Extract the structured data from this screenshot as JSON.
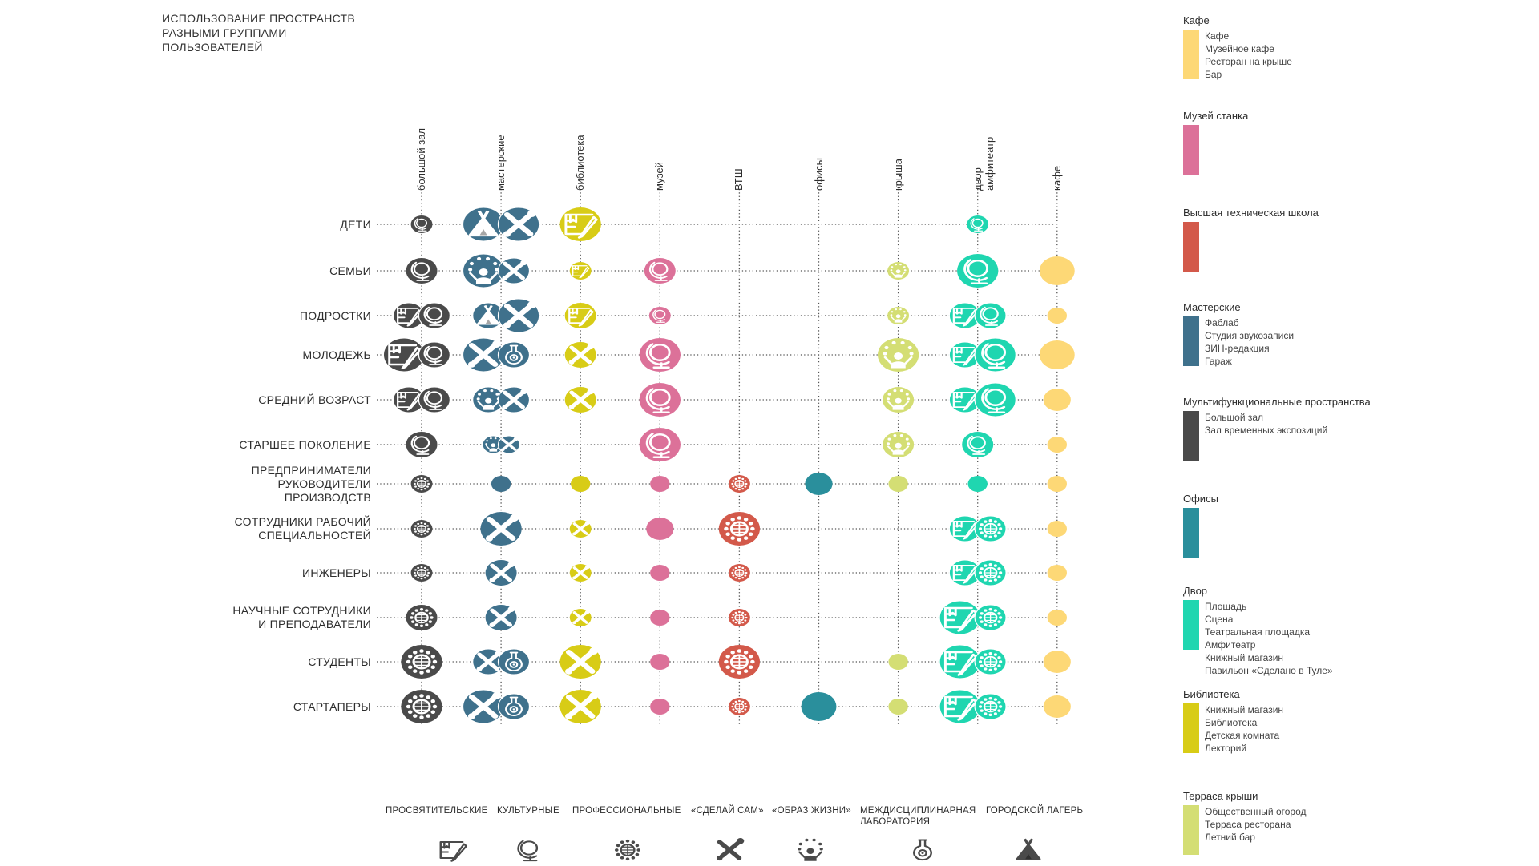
{
  "title": [
    "ИСПОЛЬЗОВАНИЕ ПРОСТРАНСТВ",
    "РАЗНЫМИ ГРУППАМИ",
    "ПОЛЬЗОВАТЕЛЕЙ"
  ],
  "colors": {
    "hall": "#4a4a4a",
    "workshops": "#3f718c",
    "library": "#d8cc16",
    "museum": "#dc7199",
    "vtsh": "#d3594a",
    "offices": "#2a8f9c",
    "roof": "#d4de74",
    "yard": "#1fd6b0",
    "cafe": "#fdd876",
    "gridline": "#555555",
    "icon_fill": "#ffffff",
    "legend_icon": "#4a4a4a"
  },
  "columns": [
    {
      "key": "hall",
      "label": [
        "большой зал"
      ]
    },
    {
      "key": "workshops",
      "label": [
        "мастерские"
      ]
    },
    {
      "key": "library",
      "label": [
        "библиотека"
      ]
    },
    {
      "key": "museum",
      "label": [
        "музей"
      ]
    },
    {
      "key": "vtsh",
      "label": [
        "ВТШ"
      ]
    },
    {
      "key": "offices",
      "label": [
        "офисы"
      ]
    },
    {
      "key": "roof",
      "label": [
        "крыша"
      ]
    },
    {
      "key": "yard",
      "label": [
        "двор",
        "амфитеатр"
      ]
    },
    {
      "key": "cafe",
      "label": [
        "кафе"
      ]
    }
  ],
  "rows": [
    {
      "label": [
        "ДЕТИ"
      ],
      "cells": {
        "hall": [
          [
            "globe",
            1
          ]
        ],
        "workshops": [
          [
            "camp",
            3
          ],
          [
            "tools",
            3
          ]
        ],
        "library": [
          [
            "edu",
            3
          ]
        ],
        "yard": [
          [
            "globe",
            1
          ]
        ]
      }
    },
    {
      "label": [
        "СЕМЬИ"
      ],
      "cells": {
        "hall": [
          [
            "globe",
            2
          ]
        ],
        "workshops": [
          [
            "life",
            3
          ],
          [
            "tools",
            2
          ]
        ],
        "library": [
          [
            "edu",
            1
          ]
        ],
        "museum": [
          [
            "globe",
            2
          ]
        ],
        "roof": [
          [
            "life",
            1
          ]
        ],
        "yard": [
          [
            "globe",
            3
          ]
        ],
        "cafe": [
          [
            "plain",
            3
          ]
        ]
      }
    },
    {
      "label": [
        "ПОДРОСТКИ"
      ],
      "cells": {
        "hall": [
          [
            "edu",
            2
          ],
          [
            "globe",
            2
          ]
        ],
        "workshops": [
          [
            "camp",
            2
          ],
          [
            "tools",
            3
          ]
        ],
        "library": [
          [
            "edu",
            2
          ]
        ],
        "museum": [
          [
            "globe",
            1
          ]
        ],
        "roof": [
          [
            "life",
            1
          ]
        ],
        "yard": [
          [
            "edu",
            2
          ],
          [
            "globe",
            2
          ]
        ],
        "cafe": [
          [
            "plain",
            1
          ]
        ]
      }
    },
    {
      "label": [
        "МОЛОДЕЖЬ"
      ],
      "cells": {
        "hall": [
          [
            "edu",
            3
          ],
          [
            "globe",
            2
          ]
        ],
        "workshops": [
          [
            "tools",
            3
          ],
          [
            "lab",
            2
          ]
        ],
        "library": [
          [
            "tools",
            2
          ]
        ],
        "museum": [
          [
            "globe",
            3
          ]
        ],
        "roof": [
          [
            "life",
            3
          ]
        ],
        "yard": [
          [
            "edu",
            2
          ],
          [
            "globe",
            3
          ]
        ],
        "cafe": [
          [
            "plain",
            3
          ]
        ]
      }
    },
    {
      "label": [
        "СРЕДНИЙ ВОЗРАСТ"
      ],
      "cells": {
        "hall": [
          [
            "edu",
            2
          ],
          [
            "globe",
            2
          ]
        ],
        "workshops": [
          [
            "life",
            2
          ],
          [
            "tools",
            2
          ]
        ],
        "library": [
          [
            "tools",
            2
          ]
        ],
        "museum": [
          [
            "globe",
            3
          ]
        ],
        "roof": [
          [
            "life",
            2
          ]
        ],
        "yard": [
          [
            "edu",
            2
          ],
          [
            "globe",
            3
          ]
        ],
        "cafe": [
          [
            "plain",
            2
          ]
        ]
      }
    },
    {
      "label": [
        "СТАРШЕЕ ПОКОЛЕНИЕ"
      ],
      "cells": {
        "hall": [
          [
            "globe",
            2
          ]
        ],
        "workshops": [
          [
            "life",
            1
          ],
          [
            "tools",
            1
          ]
        ],
        "museum": [
          [
            "globe",
            3
          ]
        ],
        "roof": [
          [
            "life",
            2
          ]
        ],
        "yard": [
          [
            "globe",
            2
          ]
        ],
        "cafe": [
          [
            "plain",
            1
          ]
        ]
      }
    },
    {
      "label": [
        "ПРЕДПРИНИМАТЕЛИ",
        "РУКОВОДИТЕЛИ",
        "ПРОИЗВОДСТВ"
      ],
      "cells": {
        "hall": [
          [
            "prof",
            1
          ]
        ],
        "workshops": [
          [
            "plain",
            1
          ]
        ],
        "library": [
          [
            "plain",
            1
          ]
        ],
        "museum": [
          [
            "plain",
            1
          ]
        ],
        "vtsh": [
          [
            "prof",
            1
          ]
        ],
        "offices": [
          [
            "plain",
            2
          ]
        ],
        "roof": [
          [
            "plain",
            1
          ]
        ],
        "yard": [
          [
            "plain",
            1
          ]
        ],
        "cafe": [
          [
            "plain",
            1
          ]
        ]
      }
    },
    {
      "label": [
        "СОТРУДНИКИ РАБОЧИЙ",
        "СПЕЦИАЛЬНОСТЕЙ"
      ],
      "cells": {
        "hall": [
          [
            "prof",
            1
          ]
        ],
        "workshops": [
          [
            "tools",
            3
          ]
        ],
        "library": [
          [
            "tools",
            1
          ]
        ],
        "museum": [
          [
            "plain",
            2
          ]
        ],
        "vtsh": [
          [
            "prof",
            3
          ]
        ],
        "yard": [
          [
            "edu",
            2
          ],
          [
            "prof",
            2
          ]
        ],
        "cafe": [
          [
            "plain",
            1
          ]
        ]
      }
    },
    {
      "label": [
        "ИНЖЕНЕРЫ"
      ],
      "cells": {
        "hall": [
          [
            "prof",
            1
          ]
        ],
        "workshops": [
          [
            "tools",
            2
          ]
        ],
        "library": [
          [
            "tools",
            1
          ]
        ],
        "museum": [
          [
            "plain",
            1
          ]
        ],
        "vtsh": [
          [
            "prof",
            1
          ]
        ],
        "yard": [
          [
            "edu",
            2
          ],
          [
            "prof",
            2
          ]
        ],
        "cafe": [
          [
            "plain",
            1
          ]
        ]
      }
    },
    {
      "label": [
        "НАУЧНЫЕ СОТРУДНИКИ",
        "И ПРЕПОДАВАТЕЛИ"
      ],
      "cells": {
        "hall": [
          [
            "prof",
            2
          ]
        ],
        "workshops": [
          [
            "tools",
            2
          ]
        ],
        "library": [
          [
            "tools",
            1
          ]
        ],
        "museum": [
          [
            "plain",
            1
          ]
        ],
        "vtsh": [
          [
            "prof",
            1
          ]
        ],
        "yard": [
          [
            "edu",
            3
          ],
          [
            "prof",
            2
          ]
        ],
        "cafe": [
          [
            "plain",
            1
          ]
        ]
      }
    },
    {
      "label": [
        "СТУДЕНТЫ"
      ],
      "cells": {
        "hall": [
          [
            "prof",
            3
          ]
        ],
        "workshops": [
          [
            "tools",
            2
          ],
          [
            "lab",
            2
          ]
        ],
        "library": [
          [
            "tools",
            3
          ]
        ],
        "museum": [
          [
            "plain",
            1
          ]
        ],
        "vtsh": [
          [
            "prof",
            3
          ]
        ],
        "roof": [
          [
            "plain",
            1
          ]
        ],
        "yard": [
          [
            "edu",
            3
          ],
          [
            "prof",
            2
          ]
        ],
        "cafe": [
          [
            "plain",
            2
          ]
        ]
      }
    },
    {
      "label": [
        "СТАРТАПЕРЫ"
      ],
      "cells": {
        "hall": [
          [
            "prof",
            3
          ]
        ],
        "workshops": [
          [
            "tools",
            3
          ],
          [
            "lab",
            2
          ]
        ],
        "library": [
          [
            "tools",
            3
          ]
        ],
        "museum": [
          [
            "plain",
            1
          ]
        ],
        "vtsh": [
          [
            "prof",
            1
          ]
        ],
        "offices": [
          [
            "plain",
            3
          ]
        ],
        "roof": [
          [
            "plain",
            1
          ]
        ],
        "yard": [
          [
            "edu",
            3
          ],
          [
            "prof",
            2
          ]
        ],
        "cafe": [
          [
            "plain",
            2
          ]
        ]
      }
    }
  ],
  "activity_types": [
    {
      "icon": "edu",
      "name": "education-icon",
      "label": [
        "ПРОСВЯТИТЕЛЬСКИЕ"
      ]
    },
    {
      "icon": "globe",
      "name": "globe-icon",
      "label": [
        "КУЛЬТУРНЫЕ"
      ]
    },
    {
      "icon": "prof",
      "name": "network-globe-icon",
      "label": [
        "ПРОФЕССИОНАЛЬНЫЕ"
      ]
    },
    {
      "icon": "tools",
      "name": "wrench-screwdriver-icon",
      "label": [
        "«СДЕЛАЙ САМ»"
      ]
    },
    {
      "icon": "life",
      "name": "juggler-icon",
      "label": [
        "«ОБРАЗ ЖИЗНИ»"
      ]
    },
    {
      "icon": "lab",
      "name": "flask-gear-icon",
      "label": [
        "МЕЖДИСЦИПЛИНАРНАЯ",
        "ЛАБОРАТОРИЯ"
      ]
    },
    {
      "icon": "camp",
      "name": "tent-icon",
      "label": [
        "ГОРОДСКОЙ ЛАГЕРЬ"
      ]
    }
  ],
  "legend": [
    {
      "key": "cafe",
      "title": "Кафе",
      "items": [
        "Кафе",
        "Музейное кафе",
        "Ресторан на крыше",
        "Бар"
      ]
    },
    {
      "key": "museum",
      "title": "Музей станка",
      "items": []
    },
    {
      "key": "vtsh",
      "title": "Высшая техническая школа",
      "items": []
    },
    {
      "key": "workshops",
      "title": "Мастерские",
      "items": [
        "Фаблаб",
        "Студия звукозаписи",
        "ЗИН-редакция",
        "Гараж"
      ]
    },
    {
      "key": "hall",
      "title": "Мультифункциональные пространства",
      "items": [
        "Большой зал",
        "Зал временных экспозиций"
      ]
    },
    {
      "key": "offices",
      "title": "Офисы",
      "items": []
    },
    {
      "key": "yard",
      "title": "Двор",
      "items": [
        "Площадь",
        "Сцена",
        "Театральная площадка",
        "Амфитеатр",
        "Книжный магазин",
        "Павильон «Сделано в Туле»"
      ]
    },
    {
      "key": "library",
      "title": "Библиотека",
      "items": [
        "Книжный магазин",
        "Библиотека",
        "Детская комната",
        "Лекторий"
      ]
    },
    {
      "key": "roof",
      "title": "Терраса крыши",
      "items": [
        "Общественный огород",
        "Терраса ресторана",
        "Летний бар"
      ]
    }
  ]
}
